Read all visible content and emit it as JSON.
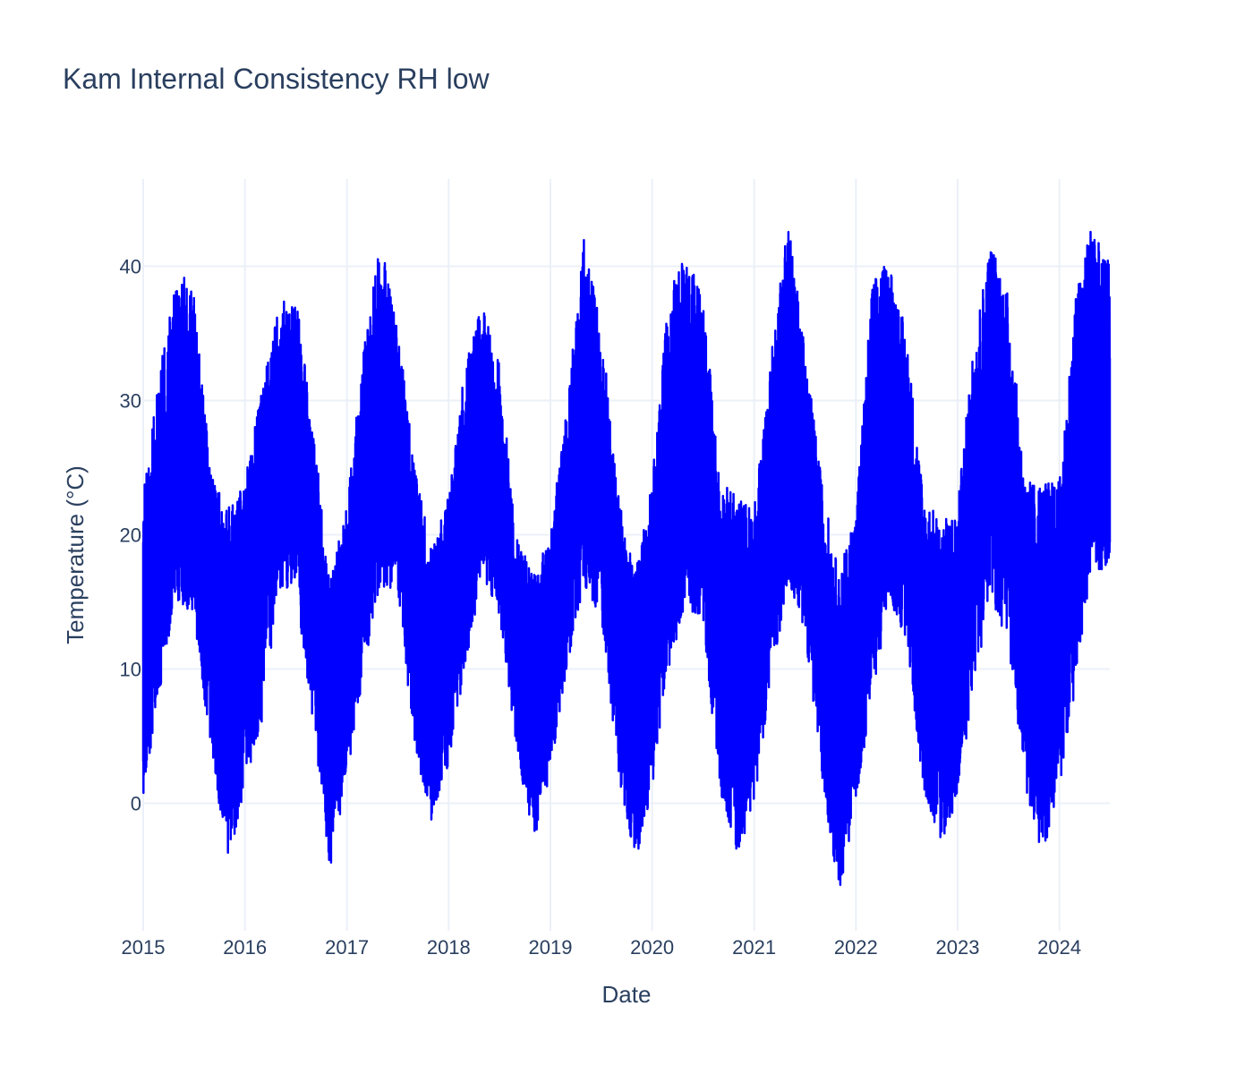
{
  "chart_data": {
    "type": "line",
    "title": "Kam Internal Consistency RH low",
    "xlabel": "Date",
    "ylabel": "Temperature (°C)",
    "xlim": [
      "2015-01-01",
      "2024-06-30"
    ],
    "ylim": [
      -9.5,
      46.5
    ],
    "x_ticks": [
      "2015",
      "2016",
      "2017",
      "2018",
      "2019",
      "2020",
      "2021",
      "2022",
      "2023",
      "2024"
    ],
    "y_ticks": [
      0,
      10,
      20,
      30,
      40
    ],
    "grid": true,
    "line_color": "#0000ff",
    "series": [
      {
        "x": [
          "2015-01",
          "2015-03",
          "2015-05",
          "2015-07",
          "2015-09",
          "2015-11",
          "2016-01",
          "2016-03",
          "2016-05",
          "2016-07",
          "2016-09",
          "2016-11",
          "2017-01",
          "2017-03",
          "2017-05",
          "2017-07",
          "2017-09",
          "2017-11",
          "2018-01",
          "2018-03",
          "2018-05",
          "2018-07",
          "2018-09",
          "2018-11",
          "2019-01",
          "2019-03",
          "2019-05",
          "2019-07",
          "2019-09",
          "2019-11",
          "2020-01",
          "2020-03",
          "2020-05",
          "2020-07",
          "2020-09",
          "2020-11",
          "2021-01",
          "2021-03",
          "2021-05",
          "2021-07",
          "2021-09",
          "2021-11",
          "2022-01",
          "2022-03",
          "2022-05",
          "2022-07",
          "2022-09",
          "2022-11",
          "2023-01",
          "2023-03",
          "2023-05",
          "2023-07",
          "2023-09",
          "2023-11",
          "2024-01",
          "2024-03",
          "2024-05",
          "2024-06"
        ],
        "min": [
          0,
          8,
          15,
          14,
          4,
          -4.5,
          1,
          6,
          16,
          16,
          6,
          -5,
          2,
          9,
          16,
          16,
          4,
          -1.5,
          3,
          10,
          17,
          14,
          4,
          -3,
          2,
          10,
          16,
          14,
          2,
          -4.5,
          1,
          10,
          15,
          13,
          1,
          -4,
          0,
          9,
          16,
          13,
          2,
          -7,
          0,
          8,
          15,
          12,
          1,
          -3,
          0,
          9,
          15,
          12,
          1,
          -4,
          1,
          9,
          18,
          17
        ],
        "max": [
          23,
          32,
          40.5,
          38,
          25,
          22,
          24,
          31,
          37,
          38.5,
          28,
          17,
          22,
          34,
          42,
          36,
          25,
          19,
          23,
          33,
          37,
          33,
          20,
          17,
          20,
          30,
          42,
          36,
          23,
          17,
          24,
          38,
          41,
          38,
          24,
          23,
          22,
          33,
          44,
          34,
          24,
          17,
          22,
          39,
          40.5,
          35,
          23,
          21,
          22,
          35,
          42,
          38,
          24,
          24,
          24,
          38,
          44,
          40.5
        ]
      }
    ]
  }
}
